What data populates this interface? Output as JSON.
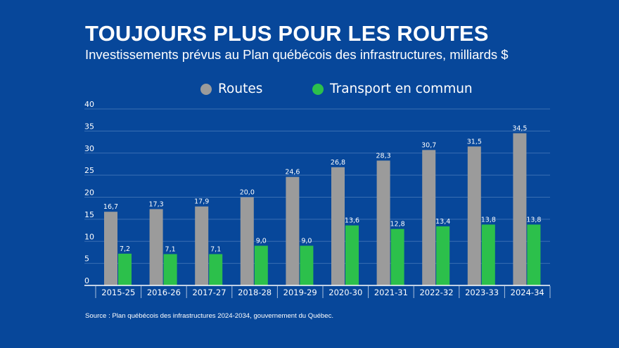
{
  "header": {
    "title": "TOUJOURS PLUS POUR LES ROUTES",
    "subtitle": "Investissements prévus au Plan québécois des infrastructures, milliards $"
  },
  "footer": {
    "source": "Source : Plan québécois des infrastructures 2024-2034, gouvernement du Québec."
  },
  "colors": {
    "background": "#07479a",
    "routes": "#9b9b9b",
    "transport": "#2cc04b",
    "gridline": "#3a6fb3"
  },
  "chart_data": {
    "type": "bar",
    "title": "TOUJOURS PLUS POUR LES ROUTES",
    "subtitle": "Investissements prévus au Plan québécois des infrastructures, milliards $",
    "xlabel": "",
    "ylabel": "",
    "ylim": [
      0,
      40
    ],
    "yticks": [
      0,
      5,
      10,
      15,
      20,
      25,
      30,
      35,
      40
    ],
    "grid": true,
    "legend_position": "top-center",
    "categories": [
      "2015-25",
      "2016-26",
      "2017-27",
      "2018-28",
      "2019-29",
      "2020-30",
      "2021-31",
      "2022-32",
      "2023-33",
      "2024-34"
    ],
    "series": [
      {
        "name": "Routes",
        "color": "#9b9b9b",
        "values": [
          16.7,
          17.3,
          17.9,
          20.0,
          24.6,
          26.8,
          28.3,
          30.7,
          31.5,
          34.5
        ],
        "labels": [
          "16,7",
          "17,3",
          "17,9",
          "20,0",
          "24,6",
          "26,8",
          "28,3",
          "30,7",
          "31,5",
          "34,5"
        ]
      },
      {
        "name": "Transport en commun",
        "color": "#2cc04b",
        "values": [
          7.2,
          7.1,
          7.1,
          9.0,
          9.0,
          13.6,
          12.8,
          13.4,
          13.8,
          13.8
        ],
        "labels": [
          "7,2",
          "7,1",
          "7,1",
          "9,0",
          "9,0",
          "13,6",
          "12,8",
          "13,4",
          "13,8",
          "13,8"
        ]
      }
    ]
  }
}
